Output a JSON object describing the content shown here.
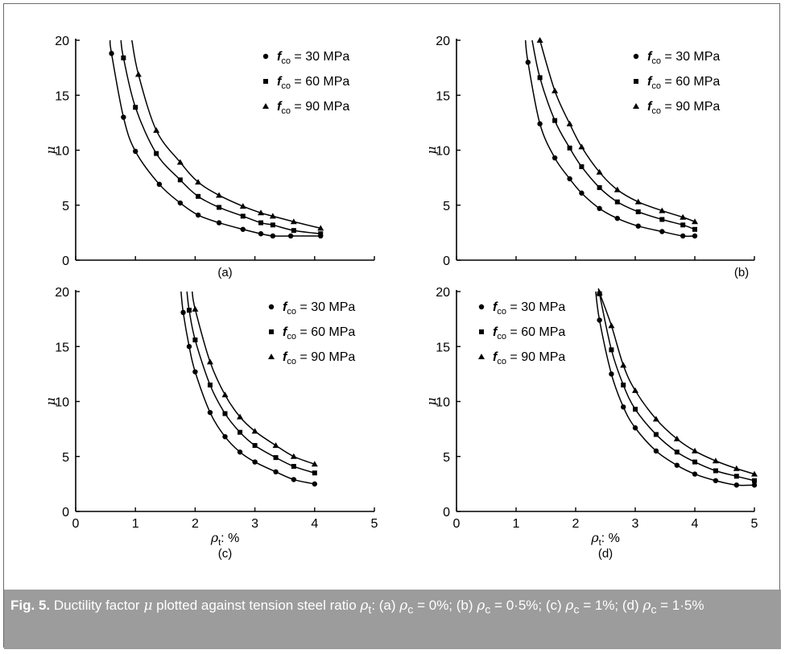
{
  "chart_data": [
    {
      "type": "line",
      "panel_label": "(a)",
      "xlim": [
        0,
        5
      ],
      "ylim": [
        0,
        20
      ],
      "xticks": [
        "0",
        "1",
        "2",
        "3",
        "4",
        "5"
      ],
      "yticks": [
        "0",
        "5",
        "10",
        "15",
        "20"
      ],
      "show_x_ticklabels": false,
      "show_xlabel": false,
      "ylabel": "μ",
      "legend_position": "top-right",
      "series": [
        {
          "name": "fco = 30 MPa",
          "marker": "circle",
          "x": [
            0.6,
            0.8,
            1.0,
            1.4,
            1.75,
            2.05,
            2.4,
            2.8,
            3.1,
            3.3,
            3.6,
            4.1
          ],
          "y": [
            18.8,
            13.0,
            9.9,
            6.9,
            5.2,
            4.1,
            3.4,
            2.8,
            2.4,
            2.2,
            2.2,
            2.2
          ]
        },
        {
          "name": "fco = 60 MPa",
          "marker": "square",
          "x": [
            0.8,
            1.0,
            1.35,
            1.75,
            2.05,
            2.4,
            2.8,
            3.1,
            3.3,
            3.65,
            4.1
          ],
          "y": [
            18.4,
            13.9,
            9.7,
            7.3,
            5.8,
            4.8,
            4.0,
            3.4,
            3.2,
            2.7,
            2.4
          ]
        },
        {
          "name": "fco = 90 MPa",
          "marker": "triangle",
          "x": [
            1.05,
            1.35,
            1.75,
            2.05,
            2.4,
            2.8,
            3.1,
            3.3,
            3.65,
            4.1
          ],
          "y": [
            16.9,
            11.8,
            8.9,
            7.1,
            5.9,
            4.9,
            4.3,
            4.0,
            3.5,
            2.9
          ]
        }
      ]
    },
    {
      "type": "line",
      "panel_label": "(b)",
      "xlim": [
        0,
        5
      ],
      "ylim": [
        0,
        20
      ],
      "xticks": [
        "0",
        "1",
        "2",
        "3",
        "4",
        "5"
      ],
      "yticks": [
        "0",
        "5",
        "10",
        "15",
        "20"
      ],
      "show_x_ticklabels": false,
      "show_xlabel": false,
      "ylabel": "μ",
      "legend_position": "top-right",
      "series": [
        {
          "name": "fco = 30 MPa",
          "marker": "circle",
          "x": [
            1.2,
            1.4,
            1.65,
            1.9,
            2.1,
            2.4,
            2.7,
            3.05,
            3.45,
            3.8,
            4.0
          ],
          "y": [
            18.0,
            12.4,
            9.3,
            7.4,
            6.1,
            4.7,
            3.8,
            3.1,
            2.6,
            2.2,
            2.2
          ]
        },
        {
          "name": "fco = 60 MPa",
          "marker": "square",
          "x": [
            1.4,
            1.65,
            1.9,
            2.1,
            2.4,
            2.7,
            3.05,
            3.45,
            3.8,
            4.0
          ],
          "y": [
            16.6,
            12.7,
            10.2,
            8.5,
            6.6,
            5.3,
            4.4,
            3.7,
            3.2,
            2.8
          ]
        },
        {
          "name": "fco = 90 MPa",
          "marker": "triangle",
          "x": [
            1.4,
            1.65,
            1.9,
            2.1,
            2.4,
            2.7,
            3.05,
            3.45,
            3.8,
            4.0
          ],
          "y": [
            20.0,
            15.4,
            12.4,
            10.3,
            8.0,
            6.4,
            5.3,
            4.5,
            3.9,
            3.5
          ]
        }
      ]
    },
    {
      "type": "line",
      "panel_label": "(c)",
      "xlim": [
        0,
        5
      ],
      "ylim": [
        0,
        20
      ],
      "xticks": [
        "0",
        "1",
        "2",
        "3",
        "4",
        "5"
      ],
      "yticks": [
        "0",
        "5",
        "10",
        "15",
        "20"
      ],
      "show_x_ticklabels": true,
      "show_xlabel": true,
      "xlabel_rho": "ρ",
      "xlabel_sub": "t",
      "xlabel_tail": ": %",
      "ylabel": "μ",
      "legend_position": "top-right",
      "series": [
        {
          "name": "fco = 30 MPa",
          "marker": "circle",
          "x": [
            1.8,
            1.9,
            2.0,
            2.25,
            2.5,
            2.75,
            3.0,
            3.35,
            3.65,
            4.0
          ],
          "y": [
            18.1,
            15.0,
            12.7,
            9.0,
            6.8,
            5.4,
            4.5,
            3.6,
            2.9,
            2.5
          ]
        },
        {
          "name": "fco = 60 MPa",
          "marker": "square",
          "x": [
            1.9,
            2.0,
            2.25,
            2.5,
            2.75,
            3.0,
            3.35,
            3.65,
            4.0
          ],
          "y": [
            18.3,
            15.6,
            11.5,
            8.9,
            7.2,
            6.0,
            4.9,
            4.1,
            3.5
          ]
        },
        {
          "name": "fco = 90 MPa",
          "marker": "triangle",
          "x": [
            2.0,
            2.25,
            2.5,
            2.75,
            3.0,
            3.35,
            3.65,
            4.0
          ],
          "y": [
            18.4,
            13.6,
            10.6,
            8.6,
            7.3,
            6.0,
            5.0,
            4.3
          ]
        }
      ]
    },
    {
      "type": "line",
      "panel_label": "(d)",
      "xlim": [
        0,
        5
      ],
      "ylim": [
        0,
        20
      ],
      "xticks": [
        "0",
        "1",
        "2",
        "3",
        "4",
        "5"
      ],
      "yticks": [
        "0",
        "5",
        "10",
        "15",
        "20"
      ],
      "show_x_ticklabels": true,
      "show_xlabel": true,
      "xlabel_rho": "ρ",
      "xlabel_sub": "t",
      "xlabel_tail": ": %",
      "ylabel": "μ",
      "legend_position": "top-left",
      "series": [
        {
          "name": "fco = 30 MPa",
          "marker": "circle",
          "x": [
            2.4,
            2.6,
            2.8,
            3.0,
            3.35,
            3.7,
            4.0,
            4.35,
            4.7,
            5.0
          ],
          "y": [
            17.4,
            12.5,
            9.5,
            7.6,
            5.5,
            4.2,
            3.4,
            2.8,
            2.4,
            2.4
          ]
        },
        {
          "name": "fco = 60 MPa",
          "marker": "square",
          "x": [
            2.4,
            2.6,
            2.8,
            3.0,
            3.35,
            3.7,
            4.0,
            4.35,
            4.7,
            5.0
          ],
          "y": [
            19.8,
            14.7,
            11.5,
            9.3,
            7.0,
            5.4,
            4.5,
            3.7,
            3.2,
            2.8
          ]
        },
        {
          "name": "fco = 90 MPa",
          "marker": "triangle",
          "x": [
            2.4,
            2.6,
            2.8,
            3.0,
            3.35,
            3.7,
            4.0,
            4.35,
            4.7,
            5.0
          ],
          "y": [
            19.9,
            16.9,
            13.3,
            11.0,
            8.4,
            6.6,
            5.5,
            4.6,
            3.9,
            3.4
          ]
        }
      ]
    }
  ],
  "legend": {
    "symbol": "f",
    "subscript": "co",
    "suffix": " = ",
    "unit": " MPa",
    "values": [
      "30",
      "60",
      "90"
    ]
  },
  "caption": {
    "fig_label": "Fig. 5.",
    "text_1": " Ductility factor ",
    "mu": "μ",
    "text_2": " plotted against tension steel ratio ",
    "rho": "ρ",
    "sub_t": "t",
    "text_3": ": (a) ",
    "sub_c": "c",
    "case_a": " = 0%; (b) ",
    "case_b": " = 0·5%; (c) ",
    "case_c": " = 1%; (d) ",
    "case_d": " = 1·5%"
  }
}
